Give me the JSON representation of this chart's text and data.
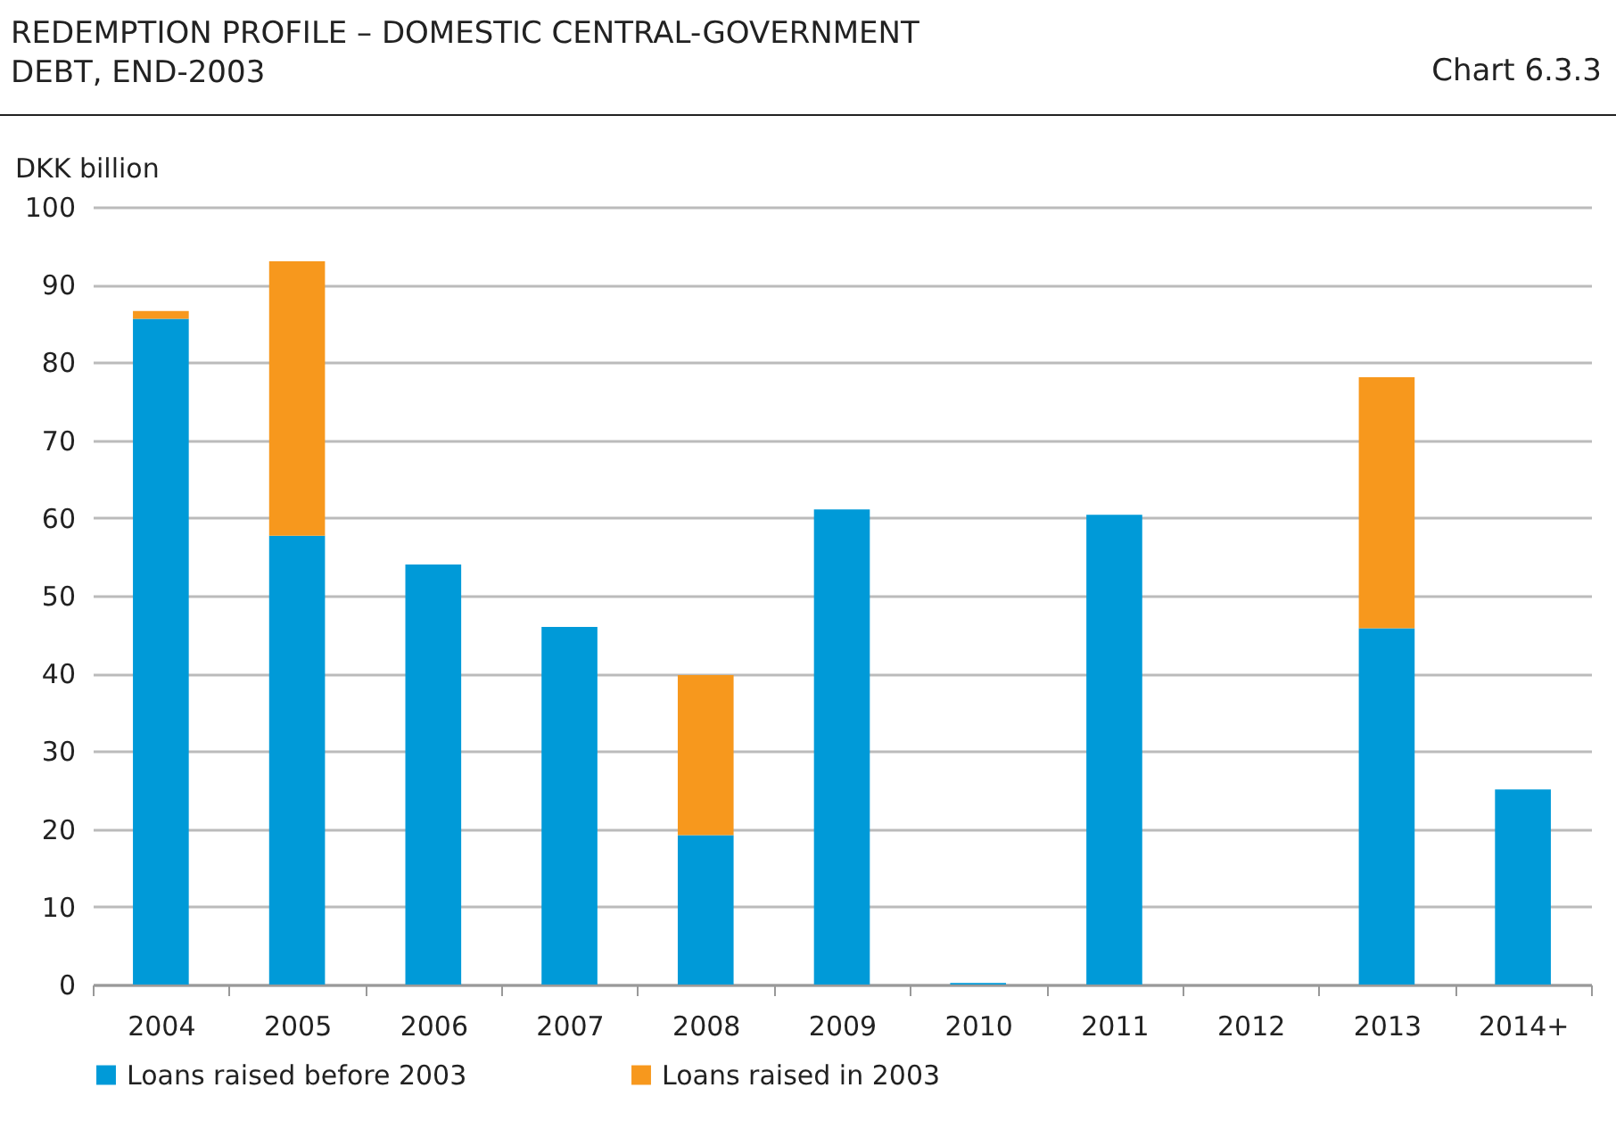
{
  "chart_data": {
    "type": "bar",
    "title": "REDEMPTION PROFILE – DOMESTIC CENTRAL-GOVERNMENT DEBT, END-2003",
    "annotations": [
      "Chart 6.3.3"
    ],
    "ylabel": "DKK billion",
    "categories": [
      "2004",
      "2005",
      "2006",
      "2007",
      "2008",
      "2009",
      "2010",
      "2011",
      "2012",
      "2013",
      "2014+"
    ],
    "stacked": true,
    "series": [
      {
        "name": "Loans raised before 2003",
        "color": "#009ad8",
        "values": [
          85.6,
          57.7,
          54.0,
          46.0,
          19.2,
          61.1,
          0.2,
          60.4,
          0,
          45.8,
          25.1
        ]
      },
      {
        "name": "Loans raised in 2003",
        "color": "#f7981d",
        "values": [
          1.0,
          35.3,
          0,
          0,
          20.6,
          0,
          0,
          0,
          0,
          32.3,
          0
        ]
      }
    ],
    "ylim": [
      0,
      100
    ],
    "yticks": [
      0,
      10,
      20,
      30,
      40,
      50,
      60,
      70,
      80,
      90,
      100
    ],
    "grid": "y",
    "legend": "bottom"
  }
}
